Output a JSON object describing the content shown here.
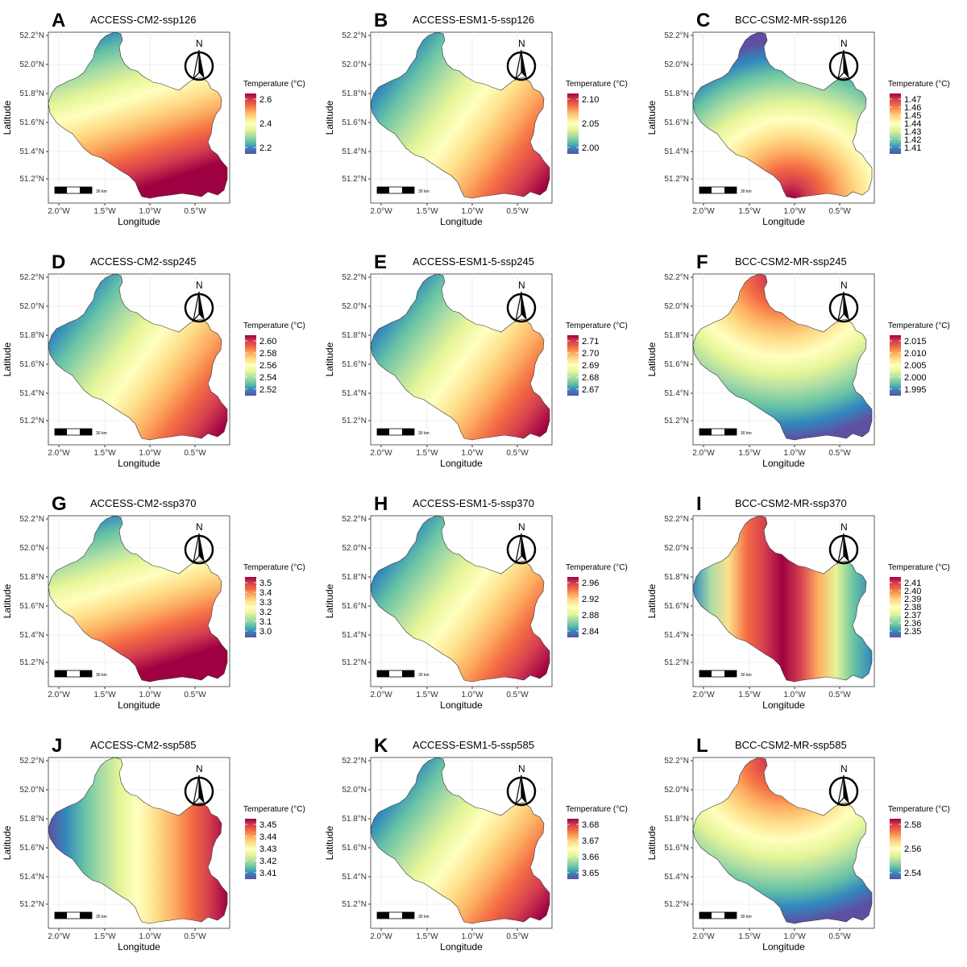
{
  "axis": {
    "xlabel": "Longitude",
    "ylabel": "Latitude",
    "xticks": [
      "2.0°W",
      "1.5°W",
      "1.0°W",
      "0.5°W"
    ],
    "yticks": [
      "52.2°N",
      "52.0°N",
      "51.8°N",
      "51.6°N",
      "51.4°N",
      "51.2°N"
    ]
  },
  "legend_title": "Temperature (°C)",
  "scale_bar_label": "30 km",
  "north_label": "N",
  "palette": [
    "#5e4fa2",
    "#3288bd",
    "#66c2a5",
    "#abdda4",
    "#e6f598",
    "#ffffbf",
    "#fee08b",
    "#fdae61",
    "#f46d43",
    "#d53e4f",
    "#9e0142"
  ],
  "panels": [
    {
      "letter": "A",
      "title": "ACCESS-CM2-ssp126",
      "legend_ticks": [
        "2.6",
        "2.4",
        "2.2"
      ],
      "gradient": "ns"
    },
    {
      "letter": "B",
      "title": "ACCESS-ESM1-5-ssp126",
      "legend_ticks": [
        "2.10",
        "2.05",
        "2.00"
      ],
      "gradient": "diag"
    },
    {
      "letter": "C",
      "title": "BCC-CSM2-MR-ssp126",
      "legend_ticks": [
        "1.47",
        "1.46",
        "1.45",
        "1.44",
        "1.43",
        "1.42",
        "1.41"
      ],
      "gradient": "radial-south"
    },
    {
      "letter": "D",
      "title": "ACCESS-CM2-ssp245",
      "legend_ticks": [
        "2.60",
        "2.58",
        "2.56",
        "2.54",
        "2.52"
      ],
      "gradient": "diag"
    },
    {
      "letter": "E",
      "title": "ACCESS-ESM1-5-ssp245",
      "legend_ticks": [
        "2.71",
        "2.70",
        "2.69",
        "2.68",
        "2.67"
      ],
      "gradient": "diag"
    },
    {
      "letter": "F",
      "title": "BCC-CSM2-MR-ssp245",
      "legend_ticks": [
        "2.015",
        "2.010",
        "2.005",
        "2.000",
        "1.995"
      ],
      "gradient": "radial-north"
    },
    {
      "letter": "G",
      "title": "ACCESS-CM2-ssp370",
      "legend_ticks": [
        "3.5",
        "3.4",
        "3.3",
        "3.2",
        "3.1",
        "3.0"
      ],
      "gradient": "ns"
    },
    {
      "letter": "H",
      "title": "ACCESS-ESM1-5-ssp370",
      "legend_ticks": [
        "2.96",
        "2.92",
        "2.88",
        "2.84"
      ],
      "gradient": "diag"
    },
    {
      "letter": "I",
      "title": "BCC-CSM2-MR-ssp370",
      "legend_ticks": [
        "2.41",
        "2.40",
        "2.39",
        "2.38",
        "2.37",
        "2.36",
        "2.35"
      ],
      "gradient": "center-band"
    },
    {
      "letter": "J",
      "title": "ACCESS-CM2-ssp585",
      "legend_ticks": [
        "3.45",
        "3.44",
        "3.43",
        "3.42",
        "3.41"
      ],
      "gradient": "we"
    },
    {
      "letter": "K",
      "title": "ACCESS-ESM1-5-ssp585",
      "legend_ticks": [
        "3.68",
        "3.67",
        "3.66",
        "3.65"
      ],
      "gradient": "diag"
    },
    {
      "letter": "L",
      "title": "BCC-CSM2-MR-ssp585",
      "legend_ticks": [
        "2.58",
        "2.56",
        "2.54"
      ],
      "gradient": "radial-north"
    }
  ]
}
